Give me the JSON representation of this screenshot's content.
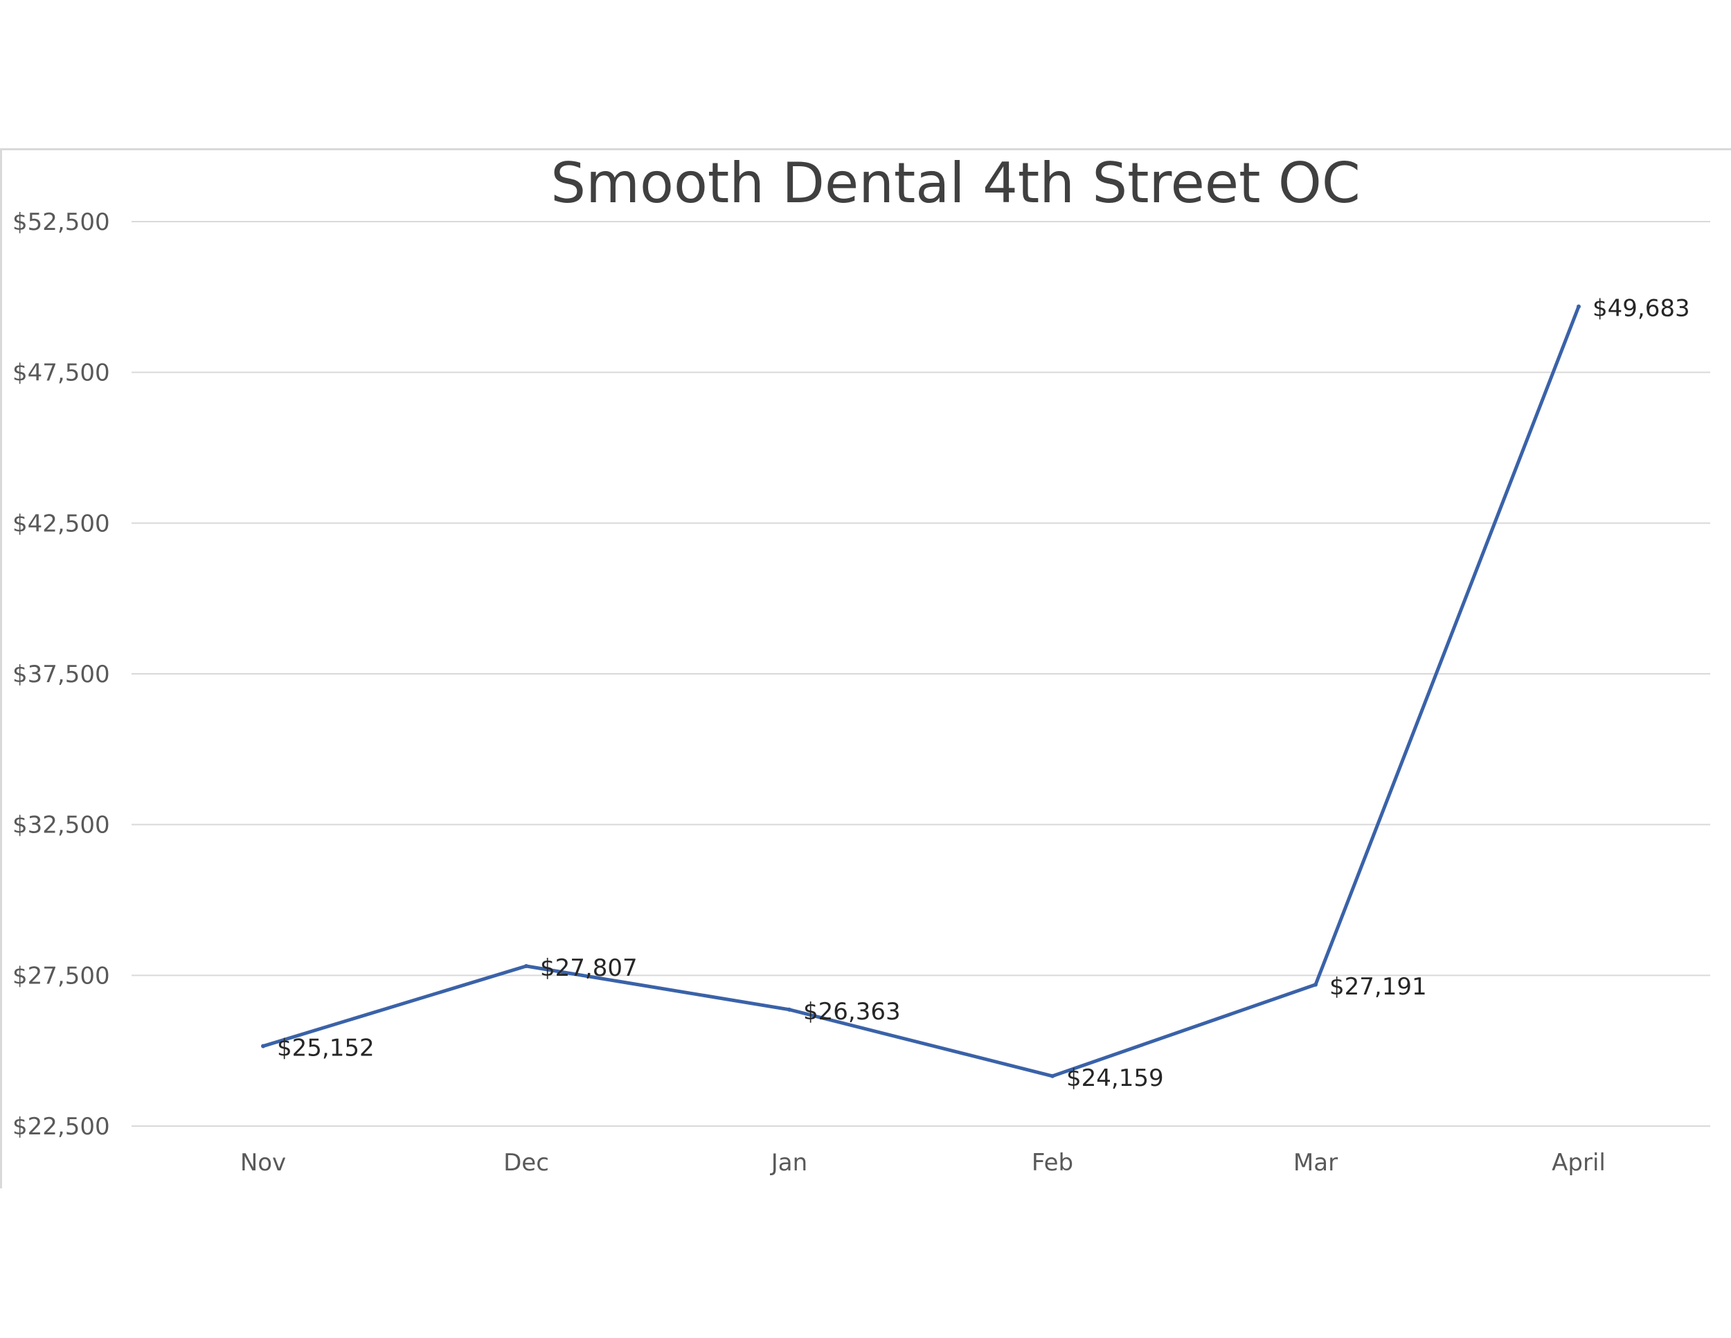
{
  "chart_data": {
    "type": "line",
    "title": "Smooth Dental 4th Street OC",
    "xlabel": "",
    "ylabel": "",
    "categories": [
      "Nov",
      "Dec",
      "Jan",
      "Feb",
      "Mar",
      "April"
    ],
    "series": [
      {
        "values": [
          25152,
          27807,
          26363,
          24159,
          27191,
          49683
        ],
        "labels": [
          "$25,152",
          "$27,807",
          "$26,363",
          "$24,159",
          "$27,191",
          "$49,683"
        ],
        "color": "#3a62a8"
      }
    ],
    "ylim": [
      22500,
      52500
    ],
    "yticks": [
      22500,
      27500,
      32500,
      37500,
      42500,
      47500,
      52500
    ],
    "ytick_labels": [
      "$22,500",
      "$27,500",
      "$32,500",
      "$37,500",
      "$42,500",
      "$47,500",
      "$52,500"
    ],
    "grid": true,
    "legend": "none",
    "gridline_color": "#d9d9d9"
  }
}
